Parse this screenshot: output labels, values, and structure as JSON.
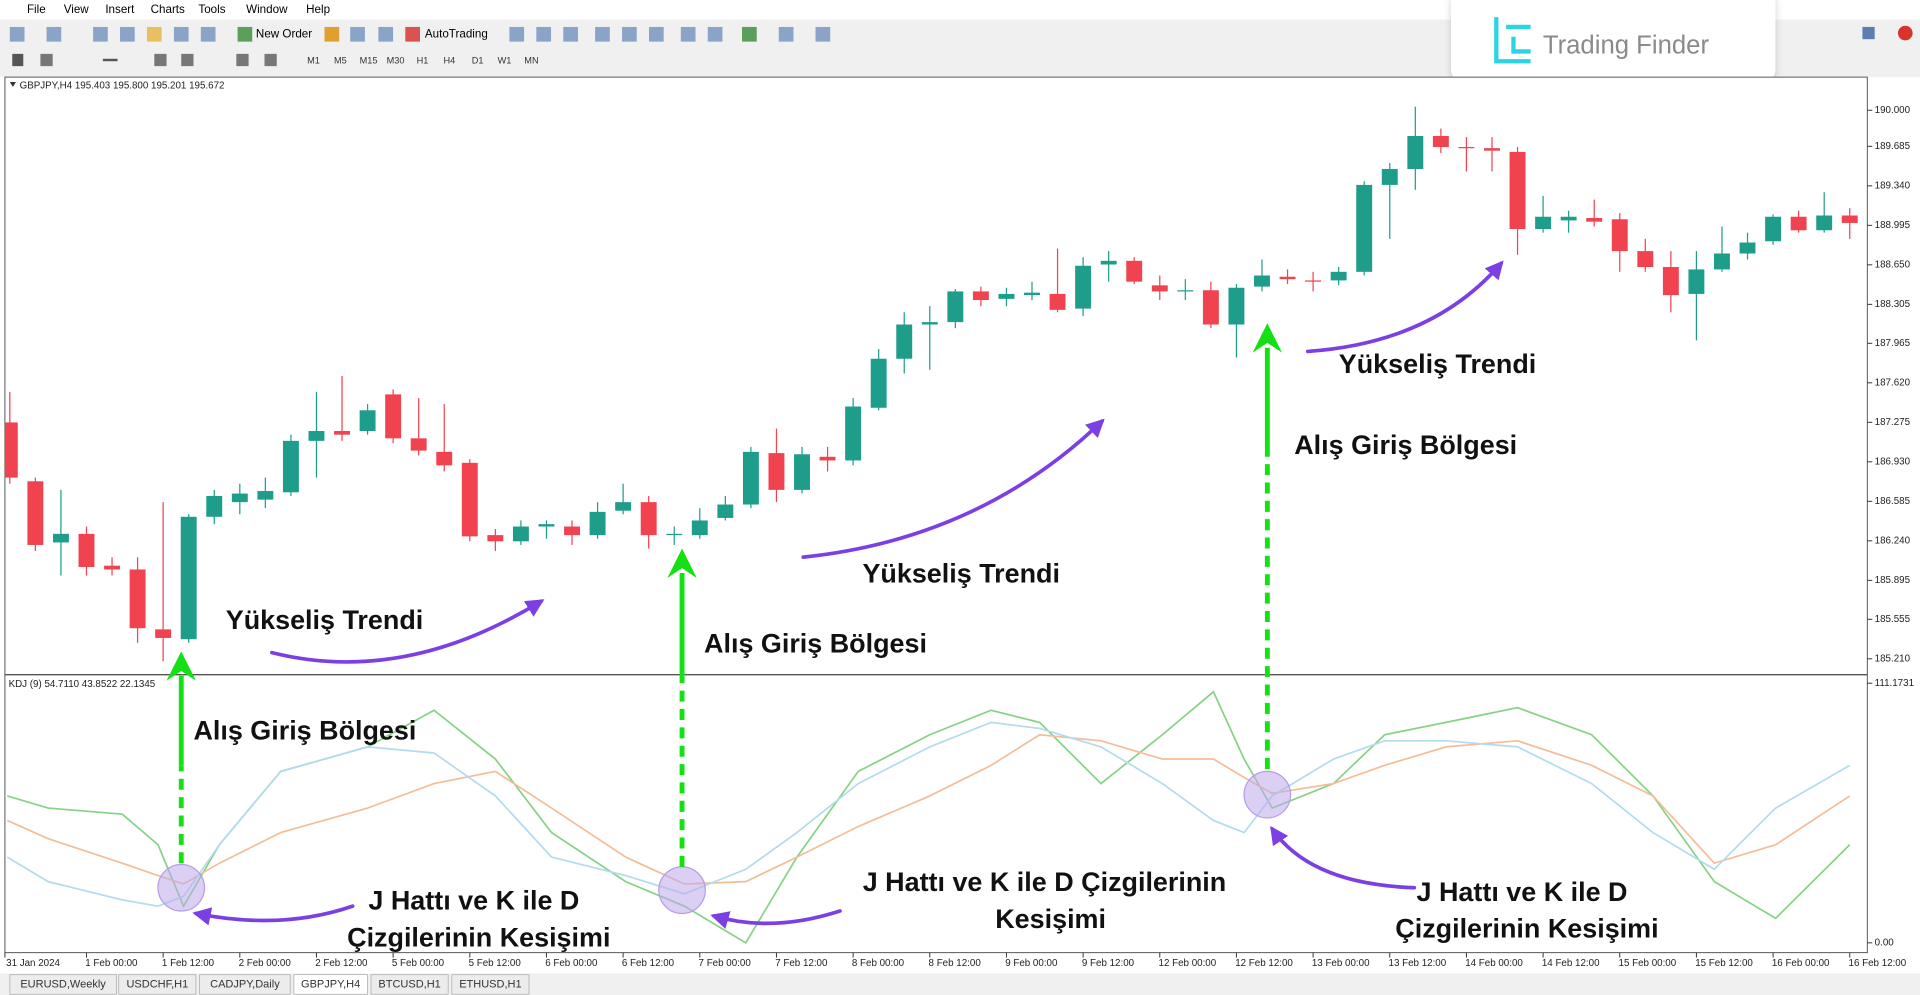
{
  "menu": [
    "File",
    "View",
    "Insert",
    "Charts",
    "Tools",
    "Window",
    "Help"
  ],
  "toolbar": {
    "new_order": "New Order",
    "autotrading": "AutoTrading",
    "timeframes": [
      "M1",
      "M5",
      "M15",
      "M30",
      "H1",
      "H4",
      "D1",
      "W1",
      "MN"
    ]
  },
  "logo": "Trading Finder",
  "chart_data": [
    {
      "type": "candlestick",
      "header": "GBPJPY,H4 195.403 195.800 195.201 195.672",
      "open": [
        187.274,
        186.76,
        186.226,
        186.301,
        186.023,
        185.99,
        185.467,
        185.381,
        186.45,
        186.578,
        186.6,
        186.664,
        187.113,
        187.199,
        187.199,
        187.519,
        187.135,
        187.017,
        186.921,
        186.29,
        186.236,
        186.365,
        186.365,
        186.29,
        186.503,
        186.578,
        186.29,
        186.29,
        186.44,
        186.557,
        187.006,
        186.685,
        186.974,
        186.942,
        187.402,
        187.83,
        188.129,
        188.15,
        188.418,
        188.353,
        188.386,
        188.396,
        188.268,
        188.653,
        188.685,
        188.471,
        188.418,
        188.428,
        188.129,
        188.46,
        188.546,
        188.514,
        188.514,
        188.589,
        189.348,
        189.487,
        189.775,
        189.679,
        189.669,
        189.636,
        188.963,
        189.038,
        189.059,
        189.048,
        188.77,
        188.631,
        188.396,
        188.61,
        188.749,
        188.856,
        189.07,
        188.952,
        189.081
      ],
      "high": [
        187.541,
        186.792,
        186.685,
        186.365,
        186.097,
        186.097,
        186.578,
        186.472,
        186.685,
        186.739,
        186.792,
        187.167,
        187.541,
        187.68,
        187.434,
        187.562,
        187.487,
        187.434,
        186.953,
        186.343,
        186.418,
        186.418,
        186.418,
        186.578,
        186.739,
        186.632,
        186.365,
        186.525,
        186.632,
        187.06,
        187.22,
        187.06,
        187.06,
        187.487,
        187.915,
        188.236,
        188.289,
        188.439,
        188.46,
        188.45,
        188.503,
        188.792,
        188.717,
        188.77,
        188.717,
        188.557,
        188.525,
        188.503,
        188.482,
        188.696,
        188.61,
        188.589,
        188.631,
        189.38,
        189.54,
        190.032,
        189.84,
        189.765,
        189.765,
        189.679,
        189.252,
        189.123,
        189.219,
        189.102,
        188.877,
        188.77,
        188.77,
        188.984,
        188.931,
        189.091,
        189.123,
        189.284,
        189.145
      ],
      "low": [
        186.739,
        186.151,
        185.937,
        185.937,
        185.937,
        185.349,
        185.189,
        185.349,
        186.386,
        186.472,
        186.525,
        186.632,
        186.792,
        187.113,
        187.167,
        187.092,
        186.985,
        186.846,
        186.236,
        186.151,
        186.204,
        186.258,
        186.204,
        186.258,
        186.472,
        186.172,
        186.204,
        186.258,
        186.418,
        186.525,
        186.578,
        186.653,
        186.846,
        186.899,
        187.38,
        187.701,
        187.733,
        188.097,
        188.289,
        188.289,
        188.343,
        188.236,
        188.204,
        188.503,
        188.482,
        188.343,
        188.343,
        188.097,
        187.84,
        188.418,
        188.482,
        188.418,
        188.471,
        188.557,
        188.877,
        189.305,
        189.626,
        189.465,
        189.465,
        188.738,
        188.931,
        188.931,
        188.984,
        188.589,
        188.589,
        188.236,
        187.99,
        188.589,
        188.696,
        188.824,
        188.931,
        188.931,
        188.877
      ],
      "close": [
        186.792,
        186.204,
        186.301,
        186.012,
        185.99,
        185.477,
        185.392,
        186.45,
        186.632,
        186.653,
        186.675,
        187.113,
        187.199,
        187.167,
        187.38,
        187.135,
        187.028,
        186.899,
        186.279,
        186.236,
        186.365,
        186.386,
        186.29,
        186.493,
        186.578,
        186.29,
        186.301,
        186.418,
        186.557,
        187.017,
        186.685,
        186.996,
        186.942,
        187.413,
        187.83,
        188.129,
        188.15,
        188.418,
        188.343,
        188.396,
        188.407,
        188.257,
        188.642,
        188.685,
        188.503,
        188.418,
        188.428,
        188.129,
        188.45,
        188.557,
        188.525,
        188.503,
        188.589,
        189.348,
        189.487,
        189.775,
        189.679,
        189.669,
        189.647,
        188.963,
        189.07,
        189.07,
        189.027,
        188.77,
        188.631,
        188.386,
        188.61,
        188.749,
        188.845,
        189.07,
        188.952,
        189.081,
        189.016
      ],
      "up_color": "#1f9d8b",
      "down_color": "#f0434f",
      "ylim": [
        185.082,
        190.289
      ],
      "yticks": [
        {
          "value": 190,
          "label": "190.000"
        },
        189.685,
        {
          "value": 189.34,
          "label": "189.340"
        },
        188.995,
        {
          "value": 188.65,
          "label": "188.650"
        },
        188.305,
        187.965,
        {
          "value": 187.62,
          "label": "187.620"
        },
        187.275,
        {
          "value": 186.93,
          "label": "186.930"
        },
        186.585,
        {
          "value": 186.24,
          "label": "186.240"
        },
        185.895,
        185.555,
        {
          "value": 185.21,
          "label": "185.210"
        }
      ]
    },
    {
      "type": "line",
      "header": "KDJ (9) 54.7110 43.8522 22.1345",
      "x": [
        -0.1,
        1.5,
        4.4,
        5.8,
        6.8,
        8.2,
        10.6,
        14,
        16.6,
        19,
        21.2,
        24.1,
        26.4,
        28.8,
        30.8,
        33.2,
        36,
        38.4,
        40.3,
        42.7,
        45.1,
        47.1,
        48.3,
        49.4,
        51.8,
        53.8,
        56.2,
        59,
        61.9,
        64.3,
        66.7,
        69.1,
        72
      ],
      "series": [
        {
          "color": "#86d286",
          "values": [
            62.9,
            57.7,
            55.1,
            42.0,
            15.7,
            42.0,
            73.4,
            83.9,
            99.6,
            78.7,
            47.2,
            26.2,
            15.7,
            0,
            36.7,
            73.4,
            89.1,
            99.6,
            94.4,
            68.2,
            89.1,
            107.5,
            78.7,
            57.7,
            68.2,
            89.1,
            94.4,
            100.7,
            89.1,
            62.9,
            26.2,
            10.5,
            42.0
          ]
        },
        {
          "color": "#f4bd98",
          "values": [
            52.4,
            44.6,
            34.1,
            28.8,
            25.2,
            34.1,
            47.2,
            57.7,
            68.2,
            73.4,
            57.7,
            36.7,
            25.2,
            26.2,
            36.7,
            49.8,
            62.9,
            76.0,
            89.1,
            86.5,
            78.7,
            78.7,
            70.8,
            64.0,
            68.2,
            76.0,
            83.9,
            86.5,
            76.0,
            62.9,
            34.1,
            42.0,
            62.9
          ]
        },
        {
          "color": "#b3dbee",
          "values": [
            36.7,
            26.2,
            18.4,
            15.7,
            19.9,
            42.0,
            73.4,
            83.9,
            81.3,
            62.9,
            36.7,
            28.8,
            21.0,
            31.5,
            47.2,
            68.2,
            83.9,
            94.4,
            91.8,
            83.9,
            68.2,
            52.4,
            47.2,
            62.9,
            78.7,
            86.5,
            86.5,
            83.9,
            68.2,
            47.2,
            31.5,
            57.7,
            76.0
          ]
        }
      ],
      "ylim": [
        -4.2,
        114.3
      ],
      "yticks": [
        111.1731,
        {
          "value": 0,
          "label": "0.00"
        }
      ]
    }
  ],
  "time_axis": [
    "31 Jan 2024",
    "1 Feb 00:00",
    "1 Feb 12:00",
    "2 Feb 00:00",
    "2 Feb 12:00",
    "5 Feb 00:00",
    "5 Feb 12:00",
    "6 Feb 00:00",
    "6 Feb 12:00",
    "7 Feb 00:00",
    "7 Feb 12:00",
    "8 Feb 00:00",
    "8 Feb 12:00",
    "9 Feb 00:00",
    "9 Feb 12:00",
    "12 Feb 00:00",
    "12 Feb 12:00",
    "13 Feb 00:00",
    "13 Feb 12:00",
    "14 Feb 00:00",
    "14 Feb 12:00",
    "15 Feb 00:00",
    "15 Feb 12:00",
    "16 Feb 00:00",
    "16 Feb 12:00"
  ],
  "annotations": [
    {
      "lines": [
        "Yükseliş Trendi"
      ]
    },
    {
      "lines": [
        "Alış Giriş Bölgesi"
      ]
    },
    {
      "lines": [
        "J Hattı ve K ile D",
        "Çizgilerinin Kesişimi"
      ]
    },
    {
      "lines": [
        "Alış Giriş Bölgesi"
      ]
    },
    {
      "lines": [
        "Yükseliş Trendi"
      ]
    },
    {
      "lines": [
        "J Hattı ve K ile D Çizgilerinin",
        "Kesişimi"
      ]
    },
    {
      "lines": [
        "Alış Giriş Bölgesi"
      ]
    },
    {
      "lines": [
        "Yükseliş Trendi"
      ]
    },
    {
      "lines": [
        "J Hattı ve K ile D",
        "Çizgilerinin Kesişimi"
      ]
    }
  ],
  "tabs": [
    "EURUSD,Weekly",
    "USDCHF,H1",
    "CADJPY,Daily",
    "GBPJPY,H4",
    "BTCUSD,H1",
    "ETHUSD,H1"
  ]
}
